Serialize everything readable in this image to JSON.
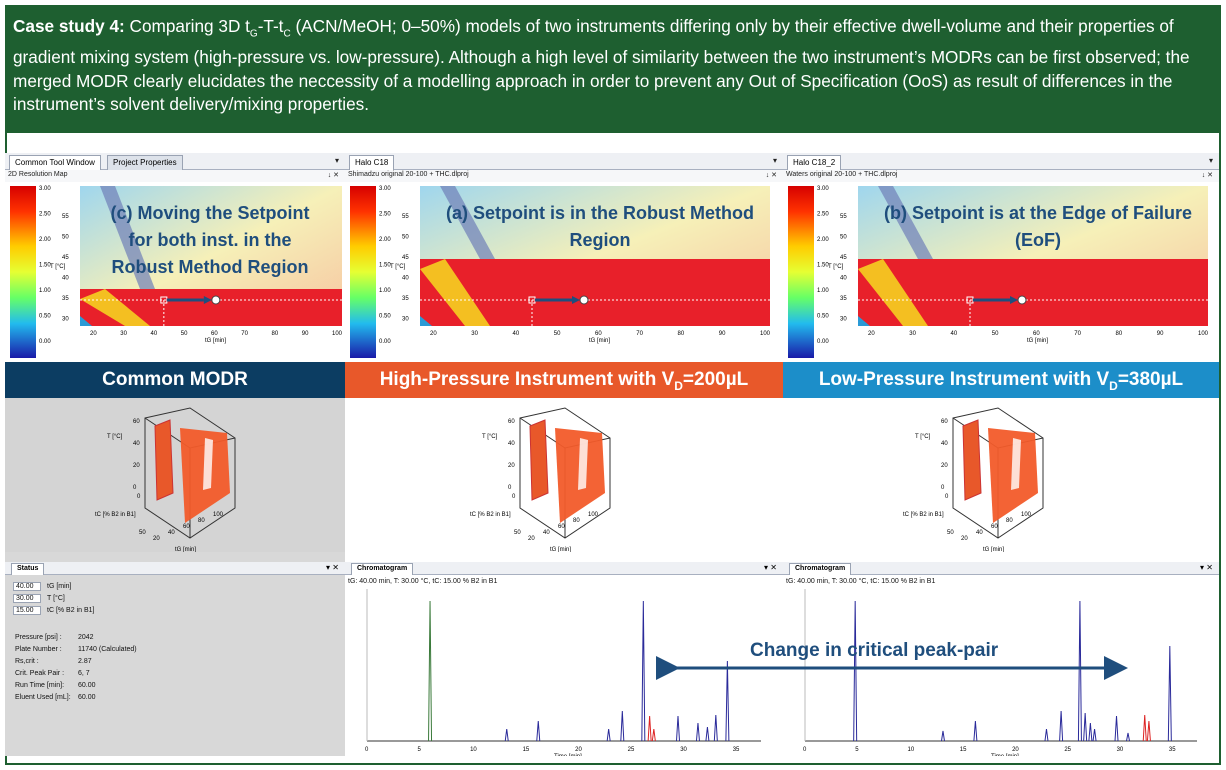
{
  "banner": {
    "lead": "Case study 4:",
    "pre": " Comparing 3D t",
    "sub_g": "G",
    "mid1": "-T-t",
    "sub_c": "C",
    "rest": " (ACN/MeOH; 0–50%) models of two instruments differing only by their effective dwell-volume and their properties of gradient mixing system (high-pressure vs. low-pressure). Although a high level of similarity between the two instrument’s MODRs can be first observed; the merged MODR clearly elucidates the neccessity of a modelling approach in order to prevent any Out of Specification (OoS) as result of differences in the instrument’s solvent delivery/mixing properties."
  },
  "colors": {
    "green": "#1e5f30",
    "navy": "#0c3d62",
    "orange": "#e8582a",
    "blue": "#1c8ec9",
    "title_blue": "#1f4e7d"
  },
  "scale_labels": [
    "3.00",
    "2.50",
    "2.00",
    "1.50",
    "1.00",
    "0.50",
    "0.00"
  ],
  "y_ticks": [
    "55",
    "50",
    "45",
    "40",
    "35",
    "30"
  ],
  "y_label": "T [°C]",
  "x_ticks": [
    "20",
    "30",
    "40",
    "50",
    "60",
    "70",
    "80",
    "90",
    "100"
  ],
  "x_label": "tG [min]",
  "axis3d": {
    "t_label": "T [°C]",
    "tc_label": "tC [% B2 in B1]",
    "tg_label": "tG [min]",
    "t_ticks": [
      "60",
      "40",
      "20",
      "0"
    ],
    "tc_ticks": [
      "0",
      "50"
    ],
    "tg_ticks": [
      "20",
      "40",
      "60",
      "80",
      "100"
    ]
  },
  "panels": [
    {
      "tab1": "Common Tool Window",
      "tab2": "Project Properties",
      "sub": "2D Resolution Map",
      "title_l1": "(c) Moving the Setpoint",
      "title_l2": "for both inst. in the",
      "title_l3": "Robust Method Region",
      "band": "Common MODR"
    },
    {
      "tab1": "Halo C18",
      "sub": "Shimadzu original 20-100 + THC.dlproj",
      "title_l1": "(a) Setpoint is in the Robust Method",
      "title_l2": "Region",
      "band_pre": "High-Pressure Instrument with V",
      "band_sub": "D",
      "band_post": "=200µL"
    },
    {
      "tab1": "Halo C18_2",
      "sub": "Waters original 20-100 + THC.dlproj",
      "title_l1": "(b) Setpoint is at the Edge of Failure",
      "title_l2": "(EoF)",
      "band_pre": "Low-Pressure Instrument with V",
      "band_sub": "D",
      "band_post": "=380µL"
    }
  ],
  "status": {
    "tab": "Status",
    "inputs": [
      {
        "value": "40.00",
        "label": "tG [min]"
      },
      {
        "value": "30.00",
        "label": "T [°C]"
      },
      {
        "value": "15.00",
        "label": "tC [% B2 in B1]"
      }
    ],
    "params": [
      {
        "label": "Pressure [psi] :",
        "value": "2042"
      },
      {
        "label": "Plate Number :",
        "value": "11740     (Calculated)"
      },
      {
        "label": "Rs,crit :",
        "value": "2.87"
      },
      {
        "label": "Crit. Peak Pair :",
        "value": "6, 7"
      },
      {
        "label": "Run Time [min]:",
        "value": "60.00"
      },
      {
        "label": "Eluent Used [mL]:",
        "value": "60.00"
      }
    ]
  },
  "chromatogram": {
    "tab": "Chromatogram",
    "info": "tG: 40.00 min, T: 30.00 °C, tC: 15.00 % B2 in B1",
    "x_ticks": [
      "0",
      "5",
      "10",
      "15",
      "20",
      "25",
      "30",
      "35"
    ],
    "xlabel": "Time [min]"
  },
  "annotation": "Change in critical peak-pair",
  "close_glyph": "▾ ✕",
  "pin_glyph": "↓ ✕"
}
